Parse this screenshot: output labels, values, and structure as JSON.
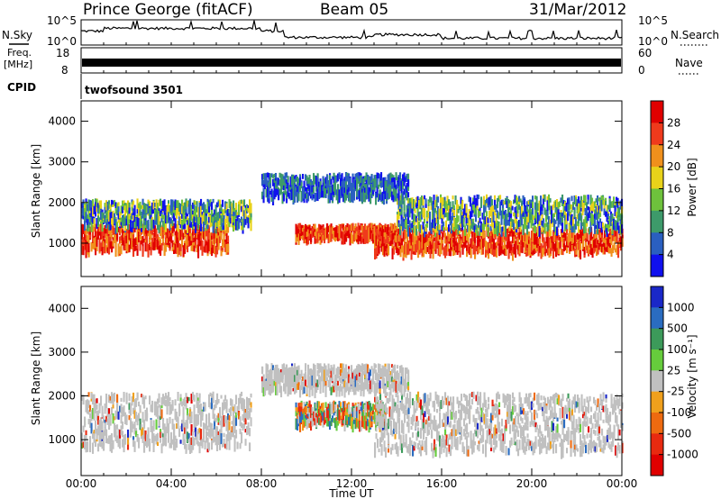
{
  "header": {
    "station": "Prince George (fitACF)",
    "beam": "Beam 05",
    "date": "31/Mar/2012"
  },
  "nsky_panel": {
    "left_label": "N.Sky",
    "right_label": "N.Search",
    "tick_top": "10^5",
    "tick_bottom": "10^0"
  },
  "freq_panel": {
    "label_line1": "Freq.",
    "label_line2": "[MHz]",
    "tick_top": "18",
    "tick_bottom": "8",
    "right_tick_top": "60",
    "right_tick_bottom": "0",
    "right_label": "Nave"
  },
  "cpid_panel": {
    "label": "CPID",
    "value": "twofsound 3501"
  },
  "chart_data": [
    {
      "type": "heatmap",
      "quantity": "Power",
      "ylabel": "Slant Range [km]",
      "xlabel": "Time UT",
      "ylim": [
        180,
        4500
      ],
      "yticks": [
        "1000",
        "2000",
        "3000",
        "4000"
      ],
      "xticks": [
        "00:00",
        "04:00",
        "08:00",
        "12:00",
        "16:00",
        "20:00",
        "00:00"
      ],
      "colorbar": {
        "label": "Power [dB]",
        "ticks": [
          "4",
          "8",
          "12",
          "16",
          "20",
          "24",
          "28"
        ],
        "colors": [
          "#1010ee",
          "#2a5fc0",
          "#3d9a6a",
          "#6ec23c",
          "#e8d21a",
          "#f0901c",
          "#ef3a1c",
          "#e00000"
        ]
      },
      "echo_bands": [
        {
          "t_start": 0.0,
          "t_end": 6.5,
          "r_min": 900,
          "r_max": 1500,
          "level": "high"
        },
        {
          "t_start": 0.0,
          "t_end": 7.5,
          "r_min": 1500,
          "r_max": 2100,
          "level": "medium"
        },
        {
          "t_start": 9.5,
          "t_end": 14.0,
          "r_min": 1200,
          "r_max": 1500,
          "level": "high"
        },
        {
          "t_start": 13.0,
          "t_end": 24.0,
          "r_min": 850,
          "r_max": 1400,
          "level": "high"
        },
        {
          "t_start": 14.0,
          "t_end": 24.0,
          "r_min": 1400,
          "r_max": 2200,
          "level": "medium"
        },
        {
          "t_start": 8.0,
          "t_end": 14.5,
          "r_min": 2200,
          "r_max": 2750,
          "level": "low"
        }
      ]
    },
    {
      "type": "heatmap",
      "quantity": "Velocity",
      "ylabel": "Slant Range [km]",
      "xlabel": "Time UT",
      "ylim": [
        180,
        4500
      ],
      "yticks": [
        "1000",
        "2000",
        "3000",
        "4000"
      ],
      "xticks": [
        "00:00",
        "04:00",
        "08:00",
        "12:00",
        "16:00",
        "20:00",
        "00:00"
      ],
      "colorbar": {
        "label": "Velocity [m s⁻¹]",
        "ticks": [
          "1000",
          "500",
          "100",
          "25",
          "-25",
          "-100",
          "-500",
          "-1000"
        ],
        "colors": [
          "#1a28c8",
          "#2a6cc0",
          "#3c9a5a",
          "#66cc3c",
          "#c0c0c0",
          "#f0a01c",
          "#ee6a10",
          "#e82a10",
          "#e00000"
        ]
      },
      "echo_bands": [
        {
          "t_start": 0.0,
          "t_end": 7.5,
          "r_min": 900,
          "r_max": 2100,
          "level": "ground"
        },
        {
          "t_start": 9.5,
          "t_end": 13.5,
          "r_min": 1400,
          "r_max": 1900,
          "level": "mixed"
        },
        {
          "t_start": 13.0,
          "t_end": 24.0,
          "r_min": 800,
          "r_max": 2100,
          "level": "ground"
        },
        {
          "t_start": 8.0,
          "t_end": 14.5,
          "r_min": 2200,
          "r_max": 2750,
          "level": "ground"
        }
      ]
    }
  ],
  "x_axis": {
    "label": "Time UT"
  }
}
